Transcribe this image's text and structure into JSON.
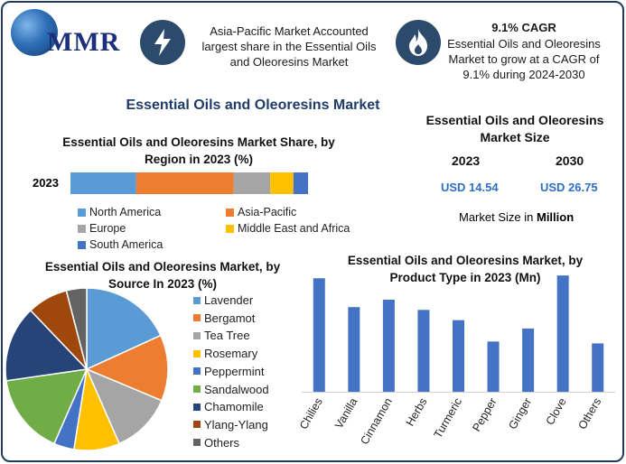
{
  "header": {
    "logo_text": "MMR",
    "box1_text": "Asia-Pacific Market Accounted largest share in the Essential Oils and Oleoresins Market",
    "box2_title": "9.1% CAGR",
    "box2_text": "Essential Oils and Oleoresins Market to grow at a CAGR of 9.1% during 2024-2030"
  },
  "main_title": "Essential Oils and Oleoresins Market",
  "market_size": {
    "title": "Essential Oils and Oleoresins Market Size",
    "year1": "2023",
    "year2": "2030",
    "value1": "USD 14.54",
    "value2": "USD 26.75",
    "note_prefix": "Market Size in ",
    "note_bold": "Million"
  },
  "colors": {
    "blue": "#5b9bd5",
    "orange": "#ed7d31",
    "gray": "#a5a5a5",
    "yellow": "#ffc000",
    "dark_blue": "#4472c4",
    "green": "#70ad47",
    "navy": "#264478",
    "brown": "#9e480e",
    "dark_gray": "#636363",
    "frame": "#1f3b57",
    "icon_bg": "#2c4a6b"
  },
  "chart_data": [
    {
      "type": "bar",
      "orientation": "horizontal-stacked",
      "title": "Essential Oils and Oleoresins Market Share, by Region in 2023 (%)",
      "categories": [
        "2023"
      ],
      "series": [
        {
          "name": "North America",
          "values": [
            27
          ]
        },
        {
          "name": "Asia-Pacific",
          "values": [
            40
          ]
        },
        {
          "name": "Europe",
          "values": [
            15
          ]
        },
        {
          "name": "Middle East and Africa",
          "values": [
            9.5
          ]
        },
        {
          "name": "South America",
          "values": [
            6
          ]
        }
      ],
      "legend_position": "bottom"
    },
    {
      "type": "pie",
      "title": "Essential Oils and Oleoresins Market, by Source In 2023 (%)",
      "labels": [
        "Lavender",
        "Bergamot",
        "Tea Tree",
        "Rosemary",
        "Peppermint",
        "Sandalwood",
        "Chamomile",
        "Ylang-Ylang",
        "Others"
      ],
      "values": [
        18,
        13,
        12,
        9,
        4,
        16,
        15,
        8,
        4
      ],
      "legend_position": "right"
    },
    {
      "type": "bar",
      "title": "Essential Oils and Oleoresins Market, by Product Type in 2023 (Mn)",
      "categories": [
        "Chilies",
        "Vanilla",
        "Cinnamon",
        "Herbs",
        "Turmeric",
        "Pepper",
        "Ginger",
        "Clove",
        "Others"
      ],
      "values": [
        122,
        91,
        99,
        88,
        77,
        54,
        68,
        125,
        52
      ],
      "ylim": [
        0,
        130
      ],
      "grid": false
    }
  ]
}
